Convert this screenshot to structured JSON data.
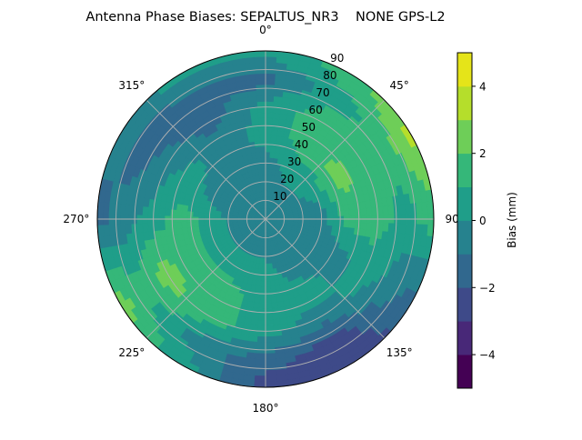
{
  "chart_data": {
    "type": "heatmap",
    "subtype": "polar-contour",
    "title": "Antenna Phase Biases: SEPALTUS_NR3    NONE GPS-L2",
    "colorbar_label": "Bias (mm)",
    "colormap": "viridis",
    "levels": [
      -5,
      -4,
      -3,
      -2,
      -1,
      0,
      1,
      2,
      3,
      4,
      5
    ],
    "level_colors": [
      "#440154",
      "#482878",
      "#3e4a89",
      "#31688e",
      "#26828e",
      "#1f9e89",
      "#35b779",
      "#6ece58",
      "#b5de2b",
      "#e5e419"
    ],
    "colorbar_ticks": [
      "−4",
      "−2",
      "0",
      "2",
      "4"
    ],
    "colorbar_tick_values": [
      -4,
      -2,
      0,
      2,
      4
    ],
    "angular_ticks": [
      "0°",
      "45°",
      "90°",
      "135°",
      "180°",
      "225°",
      "270°",
      "315°"
    ],
    "angular_tick_values": [
      0,
      45,
      90,
      135,
      180,
      225,
      270,
      315
    ],
    "radial_ticks": [
      "10",
      "20",
      "30",
      "40",
      "50",
      "60",
      "70",
      "80",
      "90"
    ],
    "radial_tick_values": [
      10,
      20,
      30,
      40,
      50,
      60,
      70,
      80,
      90
    ],
    "radial_max": 90,
    "theta_zero": "N",
    "theta_direction": "clockwise",
    "grid": true,
    "azimuth": [
      0,
      30,
      60,
      90,
      120,
      150,
      180,
      210,
      240,
      270,
      300,
      330
    ],
    "zenith": [
      0,
      15,
      30,
      45,
      60,
      75,
      90
    ],
    "values": [
      [
        -0.5,
        -0.5,
        -0.5,
        0.5,
        0.5,
        -1.5,
        0.5
      ],
      [
        -0.5,
        -0.5,
        0.5,
        1.5,
        1.5,
        0.5,
        1.5
      ],
      [
        -0.5,
        -0.5,
        0.5,
        2.5,
        1.5,
        1.5,
        3.5
      ],
      [
        -0.5,
        -0.5,
        -0.5,
        1.5,
        1.5,
        0.5,
        1.5
      ],
      [
        -0.5,
        -0.5,
        -0.5,
        -0.5,
        0.5,
        -0.5,
        -1.5
      ],
      [
        -0.5,
        -0.5,
        -0.5,
        0.5,
        -0.5,
        -2.5,
        -3.0
      ],
      [
        -0.5,
        -0.5,
        0.5,
        0.5,
        0.5,
        -1.5,
        -2.5
      ],
      [
        -0.5,
        -0.5,
        0.5,
        1.5,
        1.5,
        -0.5,
        0.5
      ],
      [
        -0.5,
        -0.5,
        0.5,
        1.5,
        2.5,
        1.5,
        2.5
      ],
      [
        -0.5,
        -0.5,
        0.5,
        1.5,
        0.5,
        -0.5,
        -1.5
      ],
      [
        -0.5,
        -0.5,
        -0.5,
        0.5,
        -0.5,
        -1.5,
        -0.5
      ],
      [
        -0.5,
        -0.5,
        -0.5,
        -0.5,
        -1.5,
        -1.5,
        0.5
      ]
    ]
  }
}
